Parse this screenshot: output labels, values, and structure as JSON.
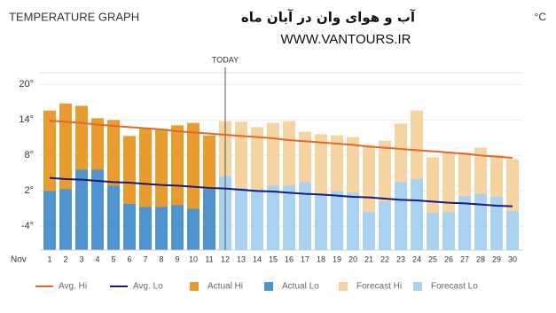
{
  "chart_data": {
    "type": "bar",
    "header": "TEMPERATURE GRAPH",
    "title": "آب و هوای وان در آبان ماه",
    "subtitle": "WWW.VANTOURS.IR",
    "unit": "°C",
    "x_label": "Nov",
    "annotation": {
      "text": "TODAY",
      "at": "12"
    },
    "categories": [
      "1",
      "2",
      "3",
      "4",
      "5",
      "6",
      "7",
      "8",
      "9",
      "10",
      "11",
      "12",
      "13",
      "14",
      "15",
      "16",
      "17",
      "18",
      "19",
      "20",
      "21",
      "22",
      "23",
      "24",
      "25",
      "26",
      "27",
      "28",
      "29",
      "30"
    ],
    "series": [
      {
        "name": "Avg. Hi",
        "type": "line",
        "color": "#e0692c",
        "values": [
          13.9,
          13.7,
          13.5,
          13.2,
          13.0,
          12.8,
          12.6,
          12.4,
          12.1,
          11.9,
          11.7,
          11.5,
          11.3,
          11.1,
          10.9,
          10.6,
          10.4,
          10.2,
          10.0,
          9.8,
          9.5,
          9.3,
          9.1,
          8.9,
          8.7,
          8.5,
          8.3,
          8.0,
          7.8,
          7.6
        ]
      },
      {
        "name": "Avg. Lo",
        "type": "line",
        "color": "#1c1c78",
        "values": [
          4.2,
          4.0,
          3.9,
          3.7,
          3.5,
          3.4,
          3.2,
          3.0,
          2.9,
          2.7,
          2.5,
          2.4,
          2.2,
          2.0,
          1.9,
          1.7,
          1.5,
          1.4,
          1.2,
          1.0,
          0.9,
          0.7,
          0.5,
          0.4,
          0.2,
          0.0,
          -0.1,
          -0.3,
          -0.5,
          -0.6
        ]
      },
      {
        "name": "Actual Hi",
        "type": "bar",
        "color": "#e89c30",
        "values": [
          15.6,
          16.8,
          16.4,
          14.3,
          14.0,
          11.3,
          12.5,
          12.5,
          13.1,
          13.5,
          11.4,
          null,
          null,
          null,
          null,
          null,
          null,
          null,
          null,
          null,
          null,
          null,
          null,
          null,
          null,
          null,
          null,
          null,
          null,
          null
        ]
      },
      {
        "name": "Actual Lo",
        "type": "bar",
        "color": "#4f93cf",
        "values": [
          2.0,
          2.3,
          5.6,
          5.6,
          2.9,
          -0.2,
          -0.7,
          -0.7,
          -0.4,
          -1.0,
          2.3,
          null,
          null,
          null,
          null,
          null,
          null,
          null,
          null,
          null,
          null,
          null,
          null,
          null,
          null,
          null,
          null,
          null,
          null,
          null
        ]
      },
      {
        "name": "Forecast Hi",
        "type": "bar",
        "color": "#f6d4a2",
        "values": [
          null,
          null,
          null,
          null,
          null,
          null,
          null,
          null,
          null,
          null,
          null,
          13.8,
          13.7,
          12.8,
          13.5,
          13.8,
          12.0,
          11.6,
          11.4,
          11.1,
          9.8,
          10.5,
          13.4,
          15.6,
          7.7,
          8.5,
          8.5,
          9.3,
          8.1,
          7.4
        ]
      },
      {
        "name": "Forecast Lo",
        "type": "bar",
        "color": "#a9d1f0",
        "values": [
          null,
          null,
          null,
          null,
          null,
          null,
          null,
          null,
          null,
          null,
          null,
          4.5,
          2.5,
          2.2,
          2.9,
          2.9,
          3.5,
          1.4,
          2.0,
          1.7,
          -1.6,
          0.2,
          3.5,
          4.0,
          -1.7,
          -1.6,
          1.1,
          1.5,
          1.0,
          -1.4
        ]
      }
    ],
    "ylim": [
      -8,
      22
    ],
    "yticks": [
      {
        "value": 20,
        "label": "20°"
      },
      {
        "value": 14,
        "label": "14°"
      },
      {
        "value": 8,
        "label": "8°"
      },
      {
        "value": 2,
        "label": "2°"
      },
      {
        "value": -4,
        "label": "-4°"
      }
    ],
    "grid": true
  }
}
